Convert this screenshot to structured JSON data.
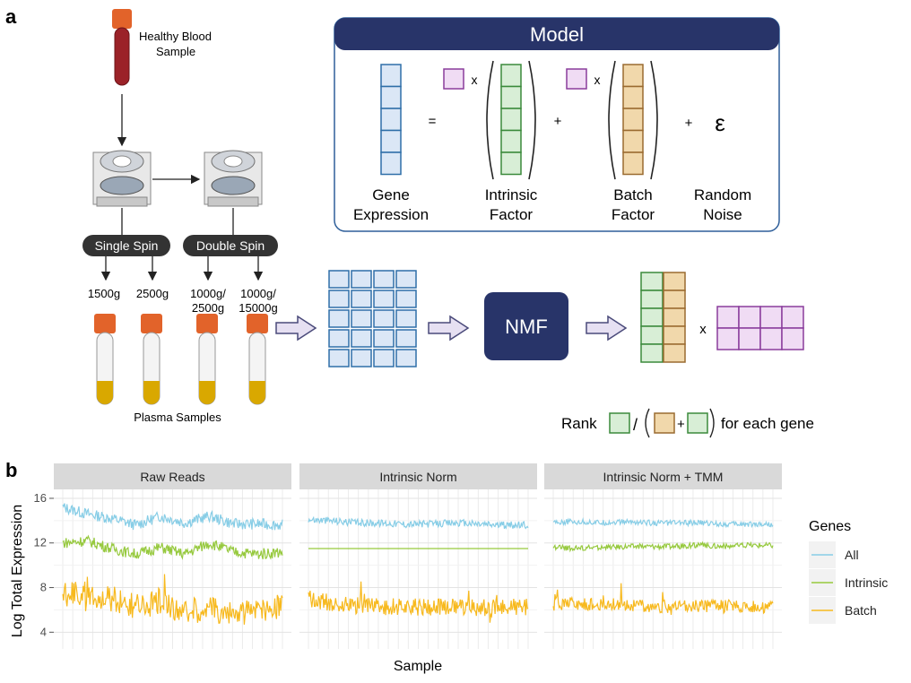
{
  "panel_a": {
    "letter": "a",
    "blood_label_1": "Healthy Blood",
    "blood_label_2": "Sample",
    "single_spin": "Single Spin",
    "double_spin": "Double Spin",
    "spin_1": "1500g",
    "spin_2": "2500g",
    "spin_3a": "1000g/",
    "spin_3b": "2500g",
    "spin_4a": "1000g/",
    "spin_4b": "15000g",
    "plasma_label": "Plasma Samples",
    "model_title": "Model",
    "eq_equals": "=",
    "eq_times_1": "x",
    "eq_times_2": "x",
    "eq_plus_1": "+",
    "eq_plus_2": "+",
    "epsilon": "ε",
    "gene_expr_1": "Gene",
    "gene_expr_2": "Expression",
    "intrinsic_1": "Intrinsic",
    "intrinsic_2": "Factor",
    "batch_1": "Batch",
    "batch_2": "Factor",
    "noise_1": "Random",
    "noise_2": "Noise",
    "nmf": "NMF",
    "nmf_times": "x",
    "rank_label": "Rank",
    "rank_slash": "/",
    "rank_plus": "+",
    "rank_suffix": "for each gene",
    "colors": {
      "navy": "#283469",
      "blue": "#2f6fa8",
      "blue_fill": "#dbe7f6",
      "green": "#3b8a3b",
      "green_fill": "#d8eed6",
      "tan": "#9a6b30",
      "tan_fill": "#f1d8ab",
      "purple": "#8a3d9c",
      "purple_fill": "#f0dcf4",
      "tube_cap": "#e2632a",
      "blood": "#9b2228",
      "plasma": "#d9a800"
    }
  },
  "panel_b": {
    "letter": "b",
    "chart_data": {
      "type": "line",
      "facets": [
        "Raw Reads",
        "Intrinsic Norm",
        "Intrinsic Norm + TMM"
      ],
      "xlabel": "Sample",
      "ylabel": "Log Total Expression",
      "yticks": [
        4,
        8,
        12,
        16
      ],
      "ylim": [
        2.5,
        16.8
      ],
      "legend_title": "Genes",
      "legend_position": "right",
      "grid": true,
      "series": [
        {
          "name": "All",
          "color": "#87cde6",
          "levels": {
            "Raw Reads": [
              15.2,
              14.6,
              14.2,
              13.6,
              14.4,
              13.8,
              14.4,
              13.7,
              13.7,
              13.6
            ],
            "Intrinsic Norm": [
              14.1,
              14.0,
              13.8,
              13.8,
              13.7,
              13.7,
              13.8,
              13.7,
              13.6,
              13.6
            ],
            "Intrinsic Norm + TMM": [
              13.9,
              13.9,
              13.8,
              13.9,
              13.8,
              13.8,
              13.8,
              13.7,
              13.7,
              13.7
            ]
          }
        },
        {
          "name": "Intrinsic",
          "color": "#96c93d",
          "levels": {
            "Raw Reads": [
              12.0,
              12.2,
              11.5,
              11.0,
              11.6,
              11.0,
              12.0,
              11.2,
              11.0,
              11.2
            ],
            "Intrinsic Norm": [
              11.5,
              11.5,
              11.5,
              11.5,
              11.5,
              11.5,
              11.5,
              11.5,
              11.5,
              11.5
            ],
            "Intrinsic Norm + TMM": [
              11.6,
              11.5,
              11.6,
              11.7,
              11.7,
              11.7,
              11.8,
              11.7,
              11.8,
              11.8
            ]
          }
        },
        {
          "name": "Batch",
          "color": "#f7b91e",
          "levels": {
            "Raw Reads": [
              7.5,
              7.4,
              7.0,
              6.2,
              6.8,
              5.8,
              6.2,
              5.5,
              6.1,
              6.3
            ],
            "Intrinsic Norm": [
              7.0,
              6.6,
              6.4,
              6.3,
              6.3,
              6.2,
              6.3,
              6.2,
              6.2,
              6.3
            ],
            "Intrinsic Norm + TMM": [
              6.6,
              6.5,
              6.4,
              6.5,
              6.3,
              6.3,
              6.4,
              6.3,
              6.4,
              6.2
            ]
          }
        }
      ]
    }
  }
}
